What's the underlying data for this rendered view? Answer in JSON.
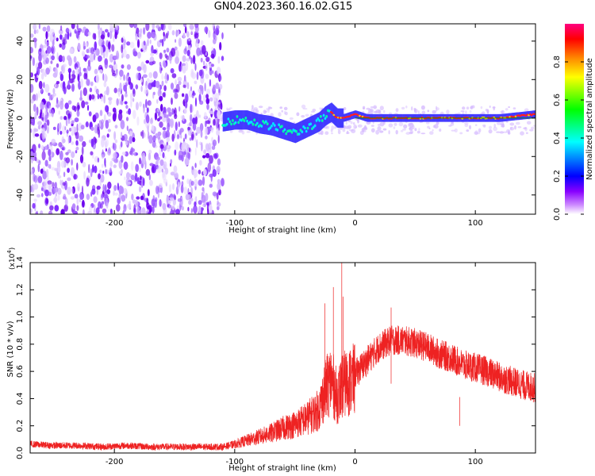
{
  "figure": {
    "title": "GN04.2023.360.16.02.G15"
  },
  "chart_data": [
    {
      "type": "heatmap",
      "xlabel": "Height of straight line (km)",
      "ylabel": "Frequency (Hz)",
      "xlim": [
        -270,
        150
      ],
      "ylim": [
        -50,
        49
      ],
      "x_ticks": [
        -200,
        -100,
        0,
        100
      ],
      "x_tick_labels": [
        "-200",
        "-100",
        "0",
        "100"
      ],
      "y_ticks": [
        -40,
        -20,
        0,
        20,
        40
      ],
      "y_tick_labels": [
        "-40",
        "-20",
        "0",
        "20",
        "40"
      ],
      "colorbar": {
        "label": "Normalized spectral amplitude",
        "range": [
          0,
          1
        ],
        "ticks": [
          "0.0",
          "0.2",
          "0.4",
          "0.6",
          "0.8"
        ],
        "colors": [
          "#ffffff",
          "#8800ff",
          "#0000ff",
          "#00ffff",
          "#00ff00",
          "#ffff00",
          "#ff8800",
          "#ff0000",
          "#ff0080"
        ]
      },
      "noise_region_x": [
        -270,
        -110
      ],
      "signal_trace": {
        "x": [
          -110,
          -100,
          -90,
          -80,
          -70,
          -60,
          -50,
          -40,
          -30,
          -25,
          -20,
          -15,
          -10,
          -5,
          0,
          10,
          40,
          80,
          120,
          150
        ],
        "frequency": [
          -2,
          -1,
          -1,
          -3,
          -4,
          -6,
          -8,
          -5,
          -2,
          1,
          3,
          0,
          0,
          1,
          2,
          0,
          0,
          0,
          0,
          2
        ]
      },
      "grid": false
    },
    {
      "type": "line",
      "xlabel": "Height of straight line (km)",
      "ylabel": "SNR (10 * v/v)",
      "y_multiplier_label": "(x10",
      "y_multiplier_exp": "4",
      "y_multiplier_close": ")",
      "xlim": [
        -270,
        150
      ],
      "ylim": [
        0,
        1.4
      ],
      "x_ticks": [
        -200,
        -100,
        0,
        100
      ],
      "x_tick_labels": [
        "-200",
        "-100",
        "0",
        "100"
      ],
      "y_ticks": [
        0,
        0.2,
        0.4,
        0.6,
        0.8,
        1.0,
        1.2,
        1.4
      ],
      "y_tick_labels": [
        "0.0",
        "0.2",
        "0.4",
        "0.6",
        "0.8",
        "1.0",
        "1.2",
        "1.4"
      ],
      "line_color": "#ee2222",
      "series": [
        {
          "x": [
            -270,
            -250,
            -230,
            -210,
            -190,
            -170,
            -150,
            -130,
            -110,
            -100,
            -90,
            -80,
            -70,
            -60,
            -50,
            -40,
            -30,
            -25,
            -20,
            -15,
            -10,
            0,
            10,
            20,
            30,
            40,
            50,
            60,
            70,
            80,
            90,
            100,
            110,
            120,
            130,
            140,
            150
          ],
          "values": [
            0.07,
            0.06,
            0.06,
            0.05,
            0.06,
            0.05,
            0.05,
            0.05,
            0.05,
            0.07,
            0.1,
            0.13,
            0.16,
            0.2,
            0.23,
            0.28,
            0.35,
            0.5,
            0.6,
            0.45,
            0.55,
            0.6,
            0.7,
            0.8,
            0.85,
            0.85,
            0.83,
            0.8,
            0.75,
            0.72,
            0.67,
            0.65,
            0.62,
            0.58,
            0.55,
            0.52,
            0.5
          ]
        }
      ],
      "peaks": [
        {
          "x": -11,
          "y": 1.4
        },
        {
          "x": -18,
          "y": 1.22
        },
        {
          "x": -10,
          "y": 1.15
        },
        {
          "x": -25,
          "y": 1.1
        },
        {
          "x": 30,
          "y": 1.07
        },
        {
          "x": 87,
          "y": 0.2
        }
      ],
      "grid": false
    }
  ]
}
